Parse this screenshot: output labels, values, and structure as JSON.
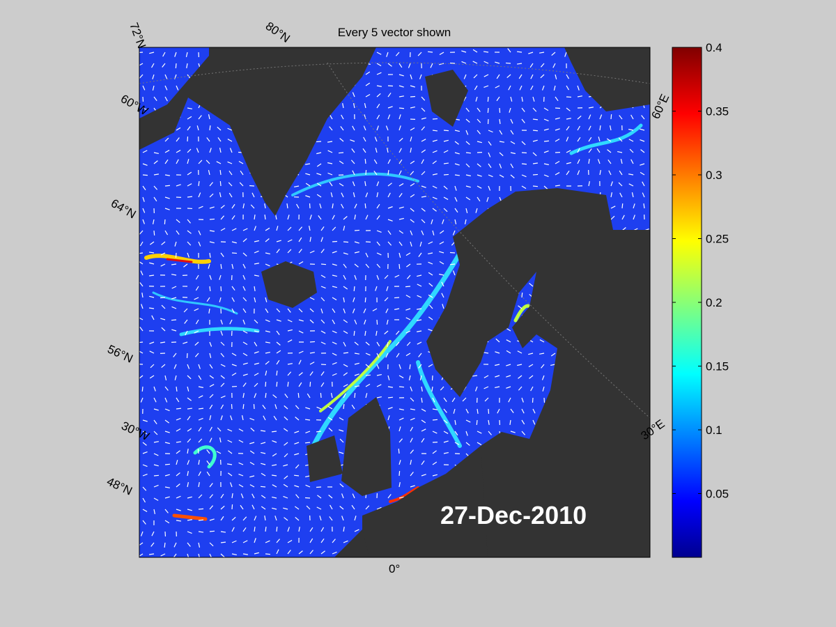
{
  "title": "Every 5 vector shown",
  "date": "27-Dec-2010",
  "graticule_labels": [
    "72°N",
    "80°N",
    "60°W",
    "64°N",
    "56°N",
    "30°W",
    "48°N",
    "0°",
    "30°E",
    "60°E"
  ],
  "colorbar": {
    "lim": [
      0,
      0.4
    ],
    "ticks": [
      0.05,
      0.1,
      0.15,
      0.2,
      0.25,
      0.3,
      0.35,
      0.4
    ]
  }
}
